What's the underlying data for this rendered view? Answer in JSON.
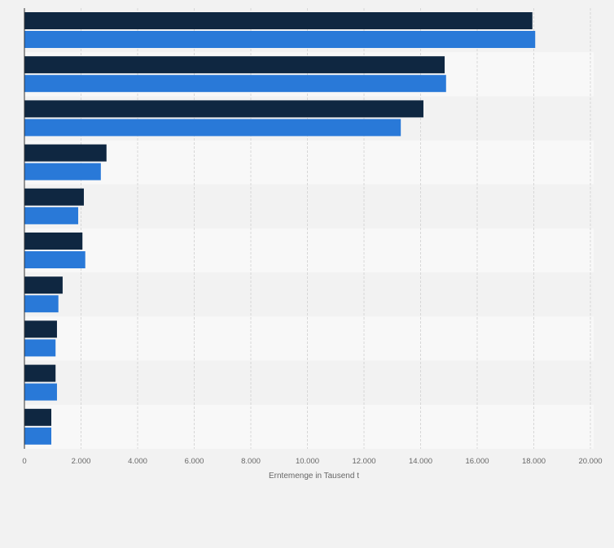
{
  "chart_data": {
    "type": "bar",
    "orientation": "horizontal",
    "categories": [
      "",
      "",
      "",
      "",
      "",
      "",
      "",
      "",
      "",
      ""
    ],
    "series": [
      {
        "values": [
          17950,
          14850,
          14100,
          2900,
          2100,
          2050,
          1350,
          1150,
          1100,
          950
        ]
      },
      {
        "values": [
          18050,
          14900,
          13300,
          2700,
          1900,
          2150,
          1200,
          1100,
          1150,
          950
        ]
      }
    ],
    "xlabel": "Erntemenge in Tausend t",
    "ylabel": "",
    "xlim": [
      0,
      20000
    ],
    "x_ticks": [
      0,
      2000,
      4000,
      6000,
      8000,
      10000,
      12000,
      14000,
      16000,
      18000,
      20000
    ],
    "x_tick_labels": [
      "0",
      "2.000",
      "4.000",
      "6.000",
      "8.000",
      "10.000",
      "12.000",
      "14.000",
      "16.000",
      "18.000",
      "20.000"
    ],
    "grid": "vertical dashed",
    "legend": "none"
  },
  "colors": {
    "series": [
      "#0f2741",
      "#2979d8"
    ],
    "background": "#f2f2f2",
    "band_light": "#f8f8f8",
    "band_dark": "#f2f2f2",
    "grid": "#d7d7d7",
    "axis": "#333333",
    "text": "#666666"
  }
}
